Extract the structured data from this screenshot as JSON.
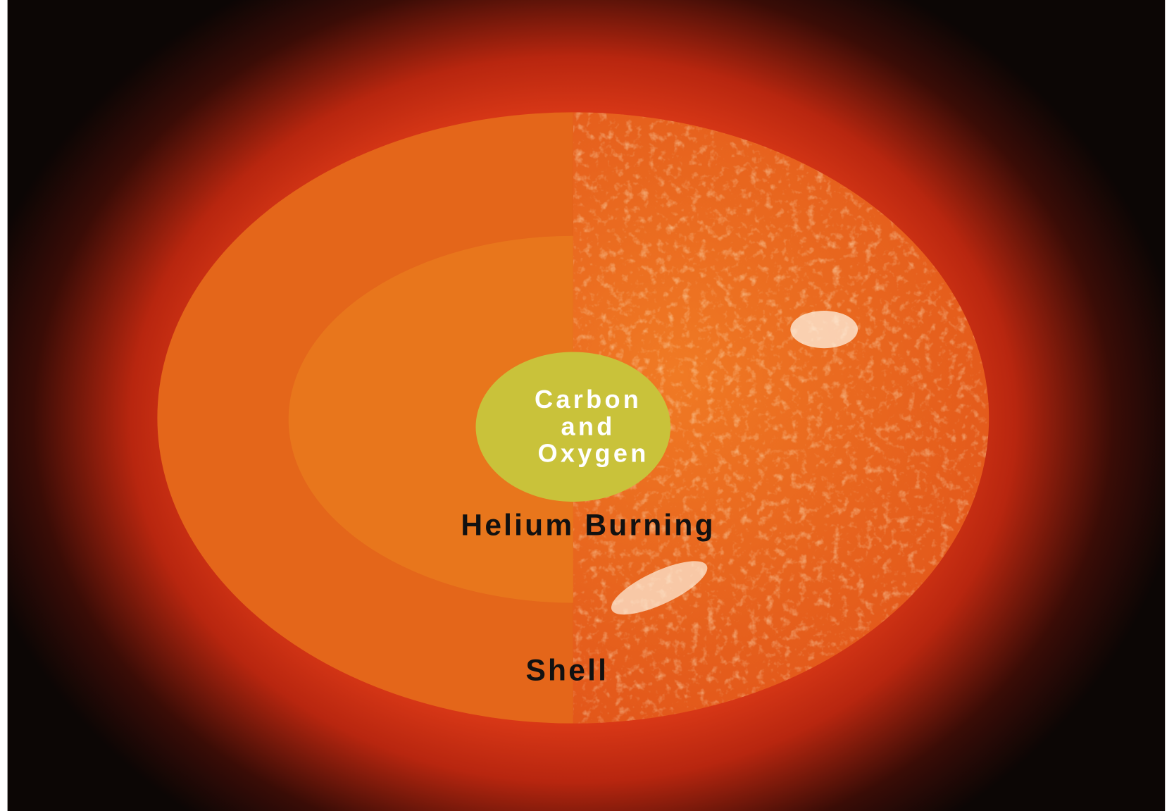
{
  "labels": {
    "core": [
      "Carbon",
      "and",
      "Oxygen"
    ],
    "burning": "Helium Burning",
    "shell": "Shell"
  }
}
